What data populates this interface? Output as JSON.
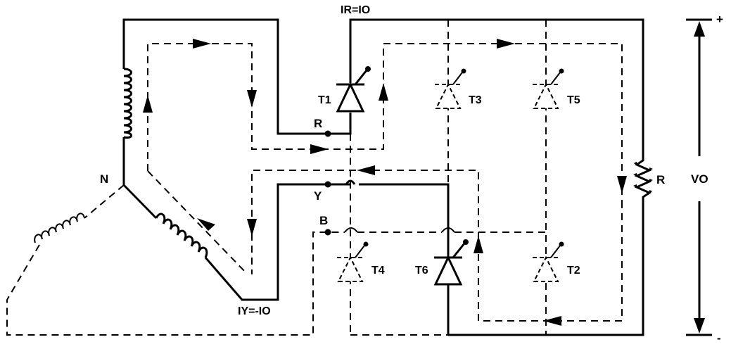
{
  "labels": {
    "current_r": "IR=IO",
    "current_y": "IY=-IO",
    "node_n": "N",
    "node_r": "R",
    "node_y": "Y",
    "node_b": "B",
    "load_r": "R",
    "vout": "VO",
    "plus": "+",
    "minus": "-"
  },
  "thyristors": [
    {
      "id": "t1",
      "label": "T1",
      "state": "conducting"
    },
    {
      "id": "t3",
      "label": "T3",
      "state": "off"
    },
    {
      "id": "t5",
      "label": "T5",
      "state": "off"
    },
    {
      "id": "t4",
      "label": "T4",
      "state": "off"
    },
    {
      "id": "t6",
      "label": "T6",
      "state": "conducting"
    },
    {
      "id": "t2",
      "label": "T2",
      "state": "off"
    }
  ]
}
